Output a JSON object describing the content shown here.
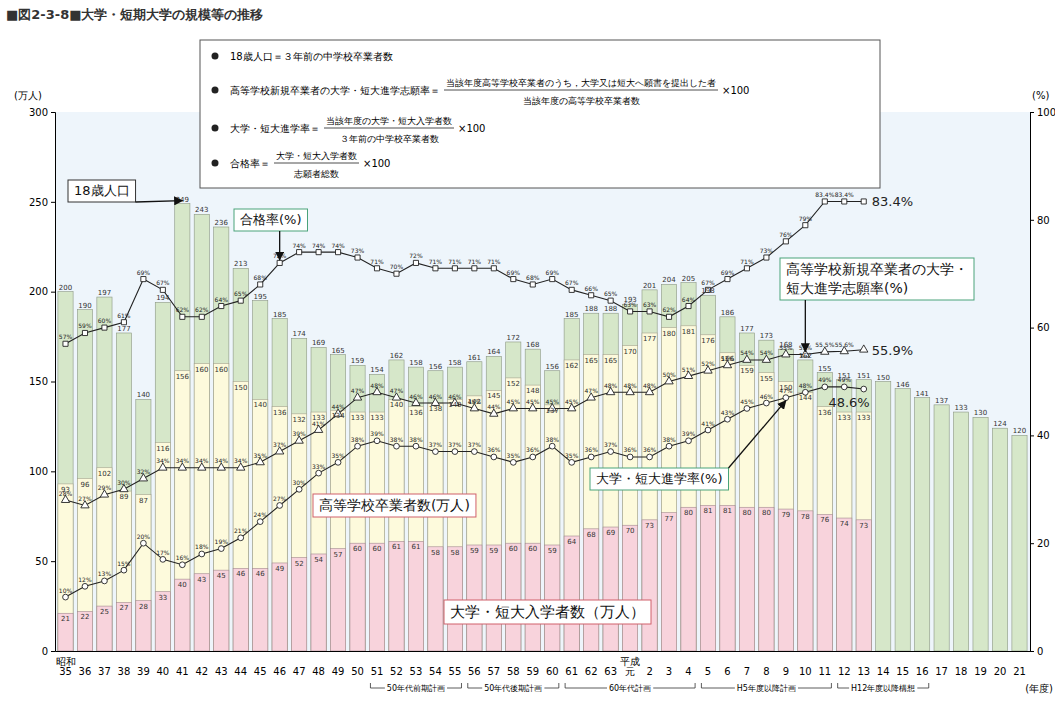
{
  "chart_data": {
    "type": "bar",
    "title": "■図2-3-8■大学・短期大学の規模等の推移",
    "y_label": "(万人)",
    "y2_label": "(%)",
    "x_label": "(年度)",
    "categories": [
      "35",
      "36",
      "37",
      "38",
      "39",
      "40",
      "41",
      "42",
      "43",
      "44",
      "45",
      "46",
      "47",
      "48",
      "49",
      "50",
      "51",
      "52",
      "53",
      "54",
      "55",
      "56",
      "57",
      "58",
      "59",
      "60",
      "61",
      "62",
      "63",
      "元",
      "2",
      "3",
      "4",
      "5",
      "6",
      "7",
      "8",
      "9",
      "10",
      "11",
      "12",
      "13",
      "14",
      "15",
      "16",
      "17",
      "18",
      "19",
      "20",
      "21"
    ],
    "eras": [
      {
        "label": "昭和",
        "at": "35"
      },
      {
        "label": "平成",
        "at": "元"
      }
    ],
    "periods": [
      {
        "label": "50年代前期計画",
        "start": "51",
        "end": "55"
      },
      {
        "label": "50年代後期計画",
        "start": "56",
        "end": "60"
      },
      {
        "label": "60年代計画",
        "start": "61",
        "end": "4"
      },
      {
        "label": "H5年度以降計画",
        "start": "5",
        "end": "11"
      },
      {
        "label": "H12年度以降構想",
        "start": "12",
        "end": "16"
      }
    ],
    "ylim": [
      0,
      300
    ],
    "yticks": [
      0,
      50,
      100,
      150,
      200,
      250,
      300
    ],
    "y2lim": [
      0,
      100
    ],
    "y2ticks": [
      0,
      20,
      40,
      60,
      80,
      100
    ],
    "stacked": false,
    "grid": false,
    "data_labels": true,
    "series": [
      {
        "name": "18歳人口",
        "type": "bar",
        "color": "#d6e7c9",
        "values": [
          200,
          190,
          197,
          177,
          140,
          194,
          249,
          243,
          236,
          213,
          195,
          185,
          174,
          169,
          165,
          159,
          154,
          162,
          158,
          156,
          158,
          161,
          164,
          172,
          168,
          156,
          185,
          188,
          188,
          193,
          201,
          204,
          205,
          198,
          186,
          177,
          173,
          168,
          162,
          155,
          151,
          151,
          150,
          146,
          141,
          137,
          133,
          130,
          124,
          120
        ]
      },
      {
        "name": "高等学校卒業者数(万人)",
        "type": "bar",
        "color": "#fdfadc",
        "values": [
          93,
          96,
          102,
          89,
          87,
          116,
          156,
          160,
          160,
          150,
          140,
          136,
          132,
          133,
          134,
          133,
          133,
          140,
          136,
          138,
          140,
          142,
          145,
          152,
          148,
          137,
          162,
          165,
          165,
          170,
          177,
          180,
          181,
          176,
          166,
          159,
          155,
          150,
          144,
          136,
          133,
          133,
          null,
          null,
          null,
          null,
          null,
          null,
          null,
          null
        ]
      },
      {
        "name": "大学・短大入学者数（万人）",
        "type": "bar",
        "color": "#f8d3dc",
        "values": [
          21,
          22,
          25,
          27,
          28,
          33,
          40,
          43,
          45,
          46,
          46,
          49,
          52,
          54,
          57,
          60,
          60,
          61,
          61,
          58,
          58,
          59,
          59,
          60,
          60,
          59,
          64,
          68,
          69,
          70,
          73,
          77,
          80,
          81,
          81,
          80,
          80,
          79,
          78,
          76,
          74,
          73,
          null,
          null,
          null,
          null,
          null,
          null,
          null,
          null
        ]
      },
      {
        "name": "合格率(%)",
        "type": "line",
        "axis": "y2",
        "marker": "square",
        "line_style": "solid",
        "color": "#222222",
        "values": [
          57,
          59,
          60,
          61,
          69,
          67,
          62,
          62,
          64,
          65,
          68,
          72,
          74,
          74,
          74,
          73,
          71,
          70,
          72,
          71,
          71,
          71,
          71,
          69,
          68,
          69,
          67,
          66,
          65,
          63,
          63,
          62,
          64,
          67,
          69,
          71,
          73,
          76,
          79,
          83.4,
          83.4,
          83.4,
          null,
          null,
          null,
          null,
          null,
          null,
          null,
          null
        ],
        "value_labels": [
          "57%",
          "59%",
          "60%",
          "61%",
          "69%",
          "67%",
          "62%",
          "62%",
          "64%",
          "65%",
          "68%",
          "72%",
          "74%",
          "74%",
          "74%",
          "73%",
          "71%",
          "70%",
          "72%",
          "71%",
          "71%",
          "71%",
          "71%",
          "69%",
          "68%",
          "69%",
          "67%",
          "66%",
          "65%",
          "63%",
          "63%",
          "62%",
          "64%",
          "67%",
          "69%",
          "71%",
          "73%",
          "76%",
          "79%",
          "83.4%",
          "83.4%",
          "83.4%",
          null,
          null,
          null,
          null,
          null,
          null,
          null,
          null
        ]
      },
      {
        "name": "高等学校新規卒業者の大学・短大進学志願率(%)",
        "type": "line",
        "axis": "y2",
        "marker": "triangle",
        "line_style": "solid",
        "color": "#222222",
        "values": [
          28,
          27,
          29,
          30,
          32,
          34,
          34,
          34,
          34,
          34,
          35,
          37,
          39,
          41,
          44,
          47,
          48,
          47,
          46,
          46,
          46,
          45,
          44,
          45,
          45,
          45,
          45,
          47,
          48,
          48,
          48,
          50,
          51,
          52,
          53,
          54,
          54,
          55,
          55,
          55.5,
          55.6,
          55.9,
          null,
          null,
          null,
          null,
          null,
          null,
          null,
          null
        ],
        "value_labels": [
          "28%",
          "27%",
          "29%",
          "30%",
          "32%",
          "34%",
          "34%",
          "34%",
          "34%",
          "34%",
          "35%",
          "37%",
          "39%",
          "41%",
          "44%",
          "47%",
          "48%",
          "47%",
          "46%",
          "46%",
          "46%",
          "45%",
          "44%",
          "45%",
          "45%",
          "45%",
          "45%",
          "47%",
          "48%",
          "48%",
          "48%",
          "50%",
          "51%",
          "52%",
          "53%",
          "54%",
          "54%",
          "55%",
          "55%",
          "55.5%",
          "55.6%",
          "55.9%",
          null,
          null,
          null,
          null,
          null,
          null,
          null,
          null
        ]
      },
      {
        "name": "大学・短大進学率(%)",
        "type": "line",
        "axis": "y2",
        "marker": "circle",
        "line_style": "solid",
        "color": "#222222",
        "values": [
          10,
          12,
          13,
          15,
          20,
          17,
          16,
          18,
          19,
          21,
          24,
          27,
          30,
          33,
          35,
          38,
          39,
          38,
          38,
          37,
          37,
          37,
          36,
          35,
          36,
          38,
          35,
          36,
          37,
          36,
          36,
          38,
          39,
          41,
          43,
          45,
          46,
          47,
          48,
          49,
          49,
          48.6,
          null,
          null,
          null,
          null,
          null,
          null,
          null,
          null
        ],
        "value_labels": [
          "10%",
          "12%",
          "13%",
          "15%",
          "20%",
          "17%",
          "16%",
          "18%",
          "19%",
          "21%",
          "24%",
          "27%",
          "30%",
          "33%",
          "35%",
          "38%",
          "39%",
          "38%",
          "38%",
          "37%",
          "37%",
          "37%",
          "36%",
          "35%",
          "36%",
          "38%",
          "35%",
          "36%",
          "37%",
          "36%",
          "36%",
          "38%",
          "39%",
          "41%",
          "43%",
          "45%",
          "46%",
          "47%",
          "48%",
          "49%",
          "49%",
          "48.6%",
          null,
          null,
          null,
          null,
          null,
          null,
          null,
          null
        ]
      }
    ],
    "definitions": [
      {
        "term": "18歳人口＝３年前の中学校卒業者数"
      },
      {
        "term": "高等学校新規卒業者の大学・短大進学志願率＝",
        "numerator": "当該年度高等学校卒業者のうち，大学又は短大へ願書を提出した者",
        "denominator": "当該年度の高等学校卒業者数",
        "factor": "×100"
      },
      {
        "term": "大学・短大進学率＝",
        "numerator": "当該年度の大学・短大入学者数",
        "denominator": "３年前の中学校卒業者数",
        "factor": "×100"
      },
      {
        "term": "合格率＝",
        "numerator": "大学・短大入学者数",
        "denominator": "志願者総数",
        "factor": "×100"
      }
    ]
  }
}
